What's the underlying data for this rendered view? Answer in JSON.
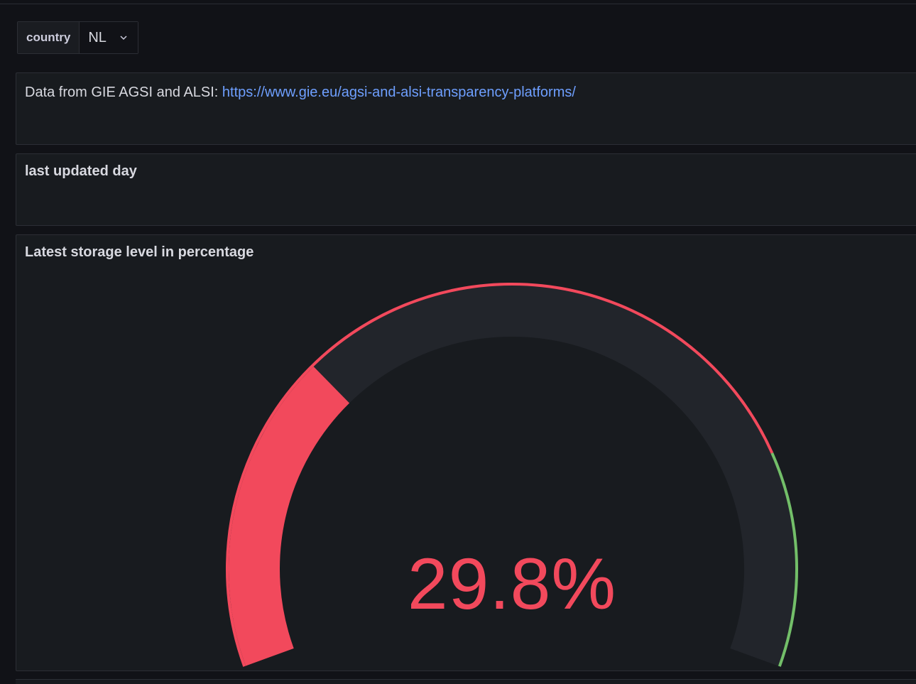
{
  "variable": {
    "label": "country",
    "value": "NL"
  },
  "info_panel": {
    "prefix": "Data from GIE AGSI and ALSI: ",
    "link_text": "https://www.gie.eu/agsi-and-alsi-transparency-platforms/"
  },
  "updated_panel": {
    "title": "last updated day"
  },
  "gauge_panel": {
    "title": "Latest storage level in percentage",
    "value": 29.8,
    "value_text": "29.8%",
    "min": 0,
    "max": 100,
    "thresholds": [
      {
        "from": 0,
        "color": "#f2495c"
      },
      {
        "from": 80,
        "color": "#73bf69"
      }
    ],
    "value_color": "#f2495c",
    "track_color": "#22252b"
  }
}
